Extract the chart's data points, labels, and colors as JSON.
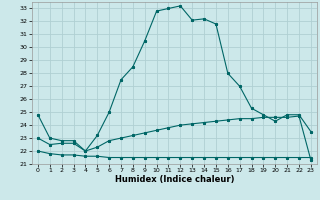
{
  "title": "",
  "xlabel": "Humidex (Indice chaleur)",
  "ylabel": "",
  "bg_color": "#cce8ea",
  "grid_color": "#b0d0d3",
  "line_color": "#006666",
  "xlim": [
    -0.5,
    23.5
  ],
  "ylim": [
    21,
    33.5
  ],
  "yticks": [
    21,
    22,
    23,
    24,
    25,
    26,
    27,
    28,
    29,
    30,
    31,
    32,
    33
  ],
  "xticks": [
    0,
    1,
    2,
    3,
    4,
    5,
    6,
    7,
    8,
    9,
    10,
    11,
    12,
    13,
    14,
    15,
    16,
    17,
    18,
    19,
    20,
    21,
    22,
    23
  ],
  "line1_x": [
    0,
    1,
    2,
    3,
    4,
    5,
    6,
    7,
    8,
    9,
    10,
    11,
    12,
    13,
    14,
    15,
    16,
    17,
    18,
    19,
    20,
    21,
    22,
    23
  ],
  "line1_y": [
    24.8,
    23.0,
    22.8,
    22.8,
    22.0,
    23.2,
    25.0,
    27.5,
    28.5,
    30.5,
    32.8,
    33.0,
    33.2,
    32.1,
    32.2,
    31.8,
    28.0,
    27.0,
    25.3,
    24.8,
    24.3,
    24.8,
    24.8,
    23.5
  ],
  "line2_x": [
    0,
    1,
    2,
    3,
    4,
    5,
    6,
    7,
    8,
    9,
    10,
    11,
    12,
    13,
    14,
    15,
    16,
    17,
    18,
    19,
    20,
    21,
    22,
    23
  ],
  "line2_y": [
    23.0,
    22.5,
    22.6,
    22.6,
    22.0,
    22.3,
    22.8,
    23.0,
    23.2,
    23.4,
    23.6,
    23.8,
    24.0,
    24.1,
    24.2,
    24.3,
    24.4,
    24.5,
    24.5,
    24.6,
    24.6,
    24.6,
    24.7,
    21.3
  ],
  "line3_x": [
    0,
    1,
    2,
    3,
    4,
    5,
    6,
    7,
    8,
    9,
    10,
    11,
    12,
    13,
    14,
    15,
    16,
    17,
    18,
    19,
    20,
    21,
    22,
    23
  ],
  "line3_y": [
    22.0,
    21.8,
    21.7,
    21.7,
    21.6,
    21.6,
    21.5,
    21.5,
    21.5,
    21.5,
    21.5,
    21.5,
    21.5,
    21.5,
    21.5,
    21.5,
    21.5,
    21.5,
    21.5,
    21.5,
    21.5,
    21.5,
    21.5,
    21.5
  ]
}
